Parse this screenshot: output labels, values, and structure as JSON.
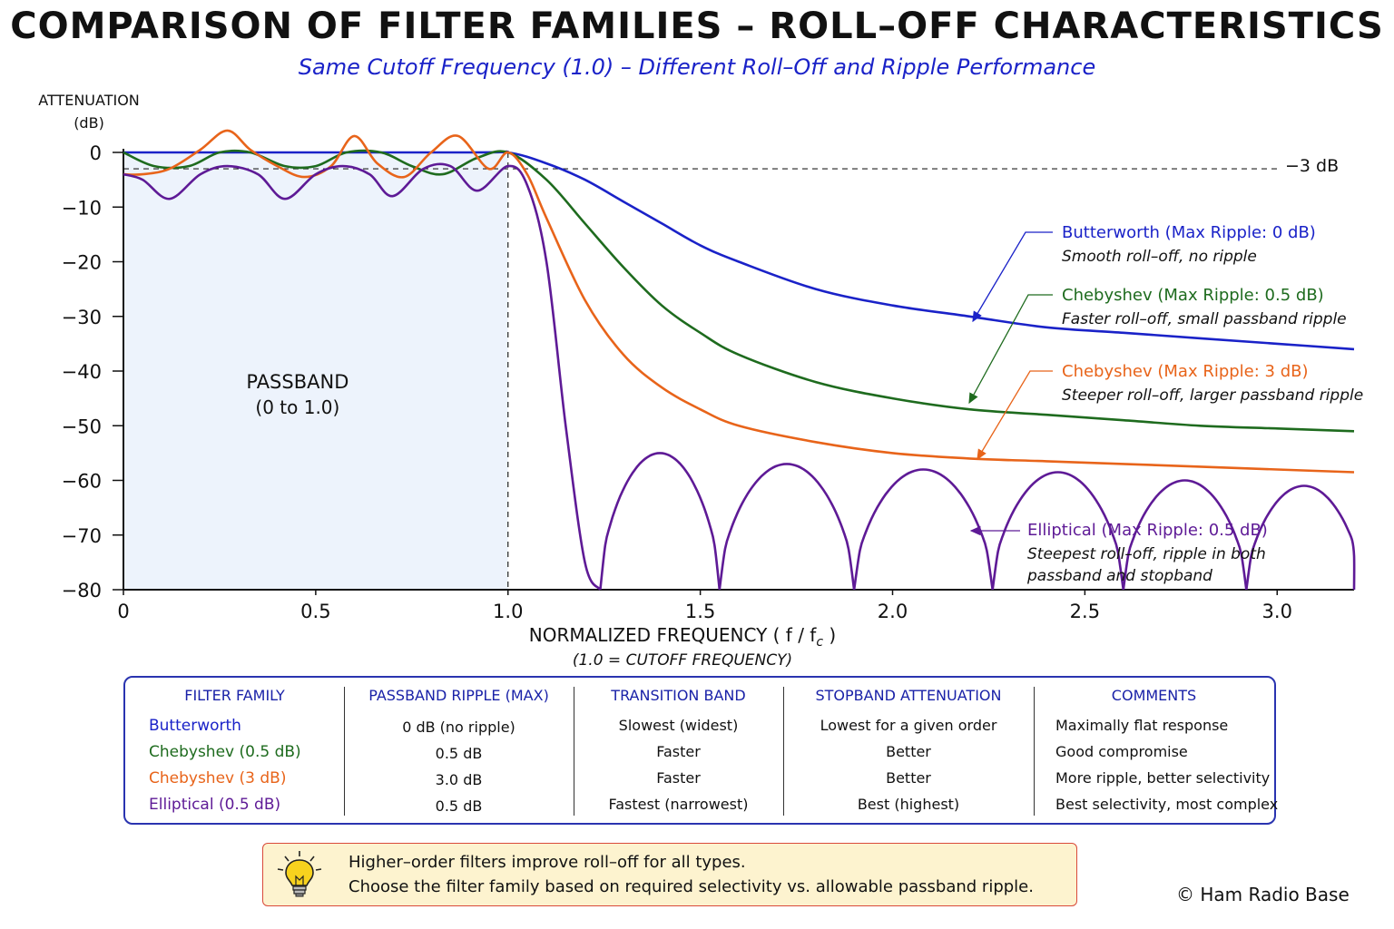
{
  "title": "COMPARISON OF FILTER FAMILIES – ROLL–OFF CHARACTERISTICS",
  "subtitle": "Same Cutoff Frequency (1.0) – Different Roll–Off and Ripple Performance",
  "chart_data": {
    "type": "line",
    "ylabel_line1": "ATTENUATION",
    "ylabel_line2": "(dB)",
    "xlabel": "NORMALIZED FREQUENCY ( f / f",
    "xlabel_sub": "c",
    "xlabel_end": ")",
    "xlabel_note": "(1.0 = CUTOFF FREQUENCY)",
    "xlim": [
      0,
      3.2
    ],
    "ylim": [
      -80,
      0
    ],
    "x_ticks": [
      0,
      0.5,
      1.0,
      1.5,
      2.0,
      2.5,
      3.0
    ],
    "x_tick_labels": [
      "0",
      "0.5",
      "1.0",
      "1.5",
      "2.0",
      "2.5",
      "3.0"
    ],
    "y_ticks": [
      0,
      -10,
      -20,
      -30,
      -40,
      -50,
      -60,
      -70,
      -80
    ],
    "y_tick_labels": [
      "0",
      "−10",
      "−20",
      "−30",
      "−40",
      "−50",
      "−60",
      "−70",
      "−80"
    ],
    "reference_line": {
      "y": -3,
      "label": "−3 dB"
    },
    "cutoff_line": {
      "x": 1.0
    },
    "passband": {
      "x_range": [
        0,
        1.0
      ],
      "label_line1": "PASSBAND",
      "label_line2": "(0 to 1.0)"
    },
    "series": [
      {
        "name": "Butterworth (Max Ripple: 0 dB)",
        "description": "Smooth roll–off, no ripple",
        "color": "#1a22c8",
        "x": [
          0,
          0.9,
          1.0,
          1.1,
          1.2,
          1.3,
          1.4,
          1.5,
          1.6,
          1.8,
          2.0,
          2.2,
          2.4,
          2.6,
          2.8,
          3.0,
          3.2
        ],
        "y": [
          0,
          0,
          0,
          -2,
          -5,
          -9,
          -13,
          -17,
          -20,
          -25,
          -28,
          -30,
          -32,
          -33,
          -34,
          -35,
          -36
        ]
      },
      {
        "name": "Chebyshev (Max Ripple: 0.5 dB)",
        "description": "Faster roll–off, small passband ripple",
        "color": "#1e6b1e",
        "x": [
          0,
          0.08,
          0.17,
          0.25,
          0.33,
          0.42,
          0.5,
          0.58,
          0.67,
          0.75,
          0.83,
          0.92,
          1.0,
          1.1,
          1.2,
          1.3,
          1.4,
          1.5,
          1.6,
          1.8,
          2.0,
          2.2,
          2.4,
          2.6,
          2.8,
          3.0,
          3.2
        ],
        "y": [
          0,
          -2.5,
          -2.5,
          0,
          0,
          -2.5,
          -2.5,
          0,
          0,
          -2.5,
          -4,
          -1,
          0,
          -5,
          -13,
          -21,
          -28,
          -33,
          -37,
          -42,
          -45,
          -47,
          -48,
          -49,
          -50,
          -50.5,
          -51
        ]
      },
      {
        "name": "Chebyshev (Max Ripple: 3 dB)",
        "description": "Steeper roll–off, larger passband ripple",
        "color": "#e8641a",
        "x": [
          0,
          0.05,
          0.12,
          0.2,
          0.27,
          0.33,
          0.4,
          0.47,
          0.54,
          0.6,
          0.66,
          0.73,
          0.8,
          0.87,
          0.95,
          1.0,
          1.05,
          1.1,
          1.2,
          1.3,
          1.4,
          1.5,
          1.6,
          1.8,
          2.0,
          2.2,
          2.4,
          2.6,
          2.8,
          3.0,
          3.2
        ],
        "y": [
          -4,
          -4,
          -3,
          0.5,
          4,
          0.5,
          -2.5,
          -4.5,
          -2.5,
          3,
          -2,
          -4.5,
          0,
          3,
          -3,
          0,
          -4,
          -12,
          -27,
          -37,
          -43,
          -47,
          -50,
          -53,
          -55,
          -56,
          -56.5,
          -57,
          -57.5,
          -58,
          -58.5
        ]
      },
      {
        "name": "Elliptical (Max Ripple: 0.5 dB)",
        "description": "Steepest roll–off, ripple in both passband and stopband",
        "color": "#5e1a96",
        "x": [
          0,
          0.05,
          0.12,
          0.2,
          0.27,
          0.35,
          0.42,
          0.5,
          0.57,
          0.64,
          0.7,
          0.78,
          0.85,
          0.92,
          1.0,
          1.05,
          1.1,
          1.15,
          1.2,
          1.24
        ],
        "y": [
          -4,
          -5,
          -8.5,
          -4,
          -2.5,
          -4,
          -8.5,
          -4,
          -2.5,
          -4,
          -8,
          -3,
          -2.5,
          -7,
          -2.5,
          -6,
          -20,
          -50,
          -75,
          -80
        ]
      }
    ]
  },
  "table": {
    "headers": [
      "FILTER FAMILY",
      "PASSBAND RIPPLE (MAX)",
      "TRANSITION BAND",
      "STOPBAND ATTENUATION",
      "COMMENTS"
    ],
    "rows": [
      {
        "family": "Butterworth",
        "color": "#1a22c8",
        "ripple": "0 dB (no ripple)",
        "transition": "Slowest (widest)",
        "stopband": "Lowest for a given order",
        "comments": "Maximally flat response"
      },
      {
        "family": "Chebyshev (0.5 dB)",
        "color": "#1e6b1e",
        "ripple": "0.5 dB",
        "transition": "Faster",
        "stopband": "Better",
        "comments": "Good compromise"
      },
      {
        "family": "Chebyshev (3 dB)",
        "color": "#e8641a",
        "ripple": "3.0 dB",
        "transition": "Faster",
        "stopband": "Better",
        "comments": "More ripple, better selectivity"
      },
      {
        "family": "Elliptical (0.5 dB)",
        "color": "#5e1a96",
        "ripple": "0.5 dB",
        "transition": "Fastest (narrowest)",
        "stopband": "Best (highest)",
        "comments": "Best selectivity, most complex"
      }
    ]
  },
  "note": {
    "icon": "lightbulb-icon",
    "line1": "Higher–order filters improve roll–off for all types.",
    "line2": "Choose the filter family based on required selectivity vs. allowable passband ripple."
  },
  "copyright": "© Ham Radio Base"
}
